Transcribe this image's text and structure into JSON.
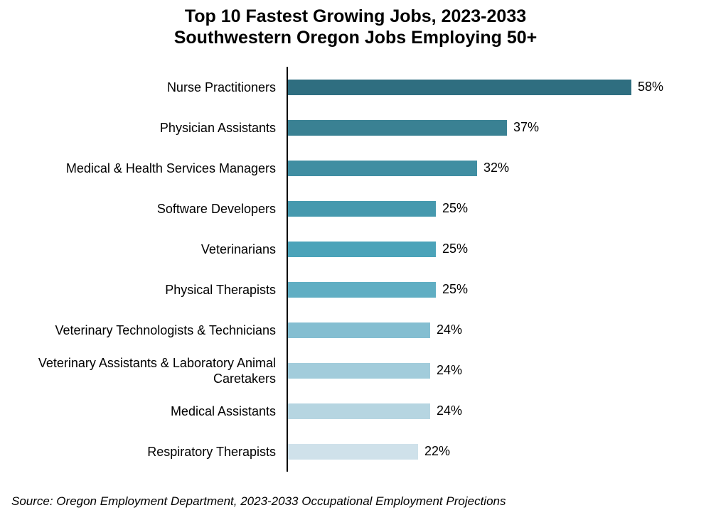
{
  "title": {
    "line1": "Top 10 Fastest Growing Jobs, 2023-2033",
    "line2": "Southwestern Oregon Jobs Employing 50+"
  },
  "source": "Source: Oregon Employment Department, 2023-2033 Occupational Employment Projections",
  "chart_data": {
    "type": "bar",
    "orientation": "horizontal",
    "title": "Top 10 Fastest Growing Jobs, 2023-2033 Southwestern Oregon Jobs Employing 50+",
    "xlabel": "",
    "ylabel": "",
    "xlim": [
      0,
      62
    ],
    "grid": false,
    "legend": false,
    "categories": [
      "Nurse Practitioners",
      "Physician Assistants",
      "Medical & Health Services Managers",
      "Software Developers",
      "Veterinarians",
      "Physical Therapists",
      "Veterinary Technologists & Technicians",
      "Veterinary Assistants & Laboratory Animal Caretakers",
      "Medical Assistants",
      "Respiratory Therapists"
    ],
    "values": [
      58,
      37,
      32,
      25,
      25,
      25,
      24,
      24,
      24,
      22
    ],
    "value_labels": [
      "58%",
      "37%",
      "32%",
      "25%",
      "25%",
      "25%",
      "24%",
      "24%",
      "24%",
      "22%"
    ],
    "bar_colors": [
      "#2f6e80",
      "#3a8193",
      "#408ea2",
      "#4699ae",
      "#4ba3b9",
      "#60aec3",
      "#84bed1",
      "#a2ccdb",
      "#b6d5e1",
      "#cfe1ea"
    ],
    "axis_color": "#000000",
    "text_color": "#000000"
  }
}
